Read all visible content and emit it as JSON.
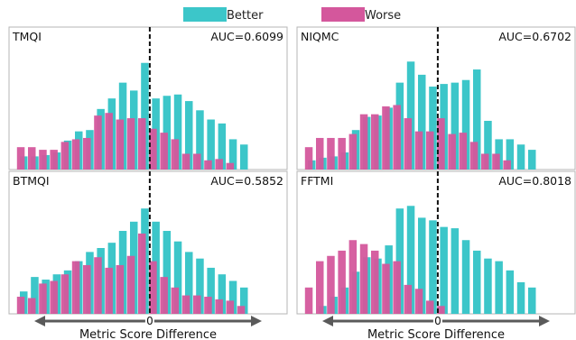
{
  "legend": [
    {
      "label": "Better",
      "color": "#3cc6c9"
    },
    {
      "label": "Worse",
      "color": "#d4579c"
    }
  ],
  "colors": {
    "better": "#3cc6c9",
    "worse": "#d4579c",
    "frame": "#b5b5b5",
    "arrow": "#5a5a5a"
  },
  "chart_data": [
    {
      "type": "bar",
      "title": "TMQI",
      "annotation": "AUC=0.6099",
      "xlabel": "",
      "zero_index": 12,
      "series": [
        {
          "name": "Better",
          "values": [
            0.1,
            0.1,
            0.11,
            0.13,
            0.22,
            0.29,
            0.3,
            0.46,
            0.54,
            0.66,
            0.6,
            0.81,
            0.54,
            0.56,
            0.57,
            0.52,
            0.45,
            0.38,
            0.35,
            0.23,
            0.19
          ]
        },
        {
          "name": "Worse",
          "values": [
            0.17,
            0.17,
            0.15,
            0.15,
            0.21,
            0.23,
            0.24,
            0.41,
            0.43,
            0.38,
            0.39,
            0.39,
            0.31,
            0.28,
            0.23,
            0.12,
            0.12,
            0.07,
            0.08,
            0.05,
            0.0
          ]
        }
      ]
    },
    {
      "type": "bar",
      "title": "NIQMC",
      "annotation": "AUC=0.6702",
      "xlabel": "",
      "zero_index": 12,
      "series": [
        {
          "name": "Better",
          "values": [
            0.07,
            0.09,
            0.1,
            0.13,
            0.3,
            0.4,
            0.41,
            0.47,
            0.66,
            0.82,
            0.72,
            0.63,
            0.65,
            0.66,
            0.68,
            0.76,
            0.37,
            0.23,
            0.23,
            0.19,
            0.15
          ]
        },
        {
          "name": "Worse",
          "values": [
            0.17,
            0.24,
            0.24,
            0.24,
            0.27,
            0.42,
            0.42,
            0.48,
            0.49,
            0.39,
            0.29,
            0.29,
            0.39,
            0.27,
            0.28,
            0.21,
            0.12,
            0.12,
            0.07,
            0.0,
            0.0
          ]
        }
      ]
    },
    {
      "type": "bar",
      "title": "BTMQI",
      "annotation": "AUC=0.5852",
      "xlabel": "Metric Score Difference",
      "zero_index": 12,
      "series": [
        {
          "name": "Better",
          "values": [
            0.17,
            0.28,
            0.26,
            0.3,
            0.33,
            0.4,
            0.47,
            0.5,
            0.54,
            0.63,
            0.7,
            0.8,
            0.7,
            0.63,
            0.55,
            0.47,
            0.42,
            0.35,
            0.3,
            0.25,
            0.2
          ]
        },
        {
          "name": "Worse",
          "values": [
            0.13,
            0.12,
            0.23,
            0.25,
            0.3,
            0.4,
            0.37,
            0.43,
            0.35,
            0.37,
            0.44,
            0.61,
            0.4,
            0.28,
            0.2,
            0.14,
            0.14,
            0.13,
            0.11,
            0.1,
            0.06
          ]
        }
      ]
    },
    {
      "type": "bar",
      "title": "FFTMI",
      "annotation": "AUC=0.8018",
      "xlabel": "Metric Score Difference",
      "zero_index": 12,
      "series": [
        {
          "name": "Better",
          "values": [
            0.0,
            0.06,
            0.13,
            0.2,
            0.32,
            0.43,
            0.42,
            0.52,
            0.8,
            0.82,
            0.73,
            0.71,
            0.66,
            0.65,
            0.56,
            0.48,
            0.42,
            0.4,
            0.33,
            0.24,
            0.2
          ]
        },
        {
          "name": "Worse",
          "values": [
            0.2,
            0.4,
            0.44,
            0.48,
            0.56,
            0.53,
            0.48,
            0.38,
            0.4,
            0.22,
            0.19,
            0.1,
            0.06,
            0.0,
            0.0,
            0.0,
            0.0,
            0.0,
            0.0,
            0.0,
            0.0
          ]
        }
      ]
    }
  ]
}
